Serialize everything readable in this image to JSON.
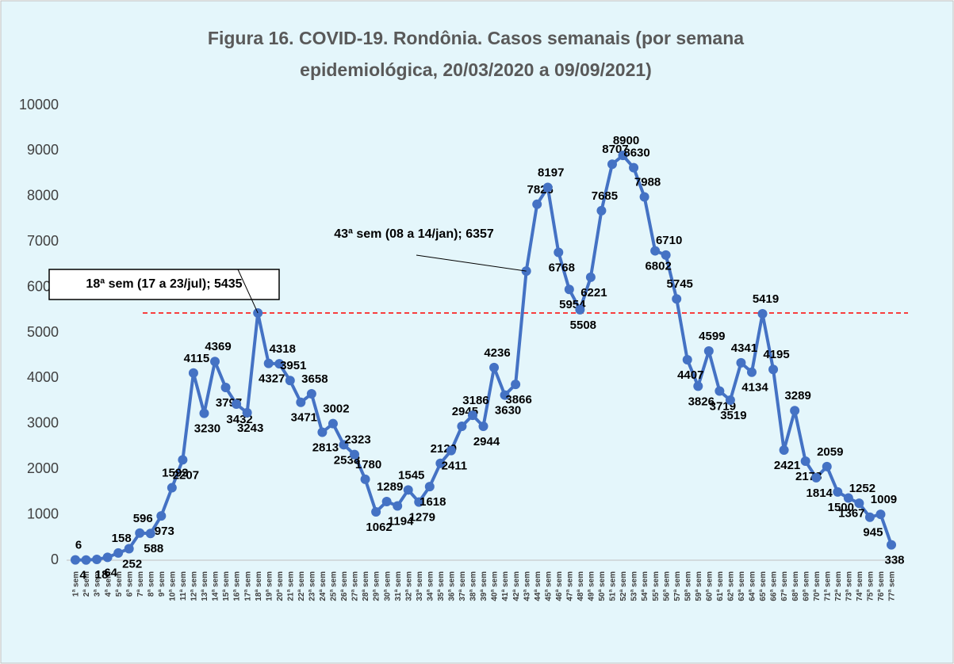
{
  "chart_data": {
    "type": "line",
    "title": [
      "Figura 16. COVID-19. Rondônia. Casos semanais (por semana",
      "epidemiológica, 20/03/2020 a 09/09/2021)"
    ],
    "categories": [
      "1ª sem",
      "2ª sem",
      "3ª sem",
      "4ª sem",
      "5ª sem",
      "6ª sem",
      "7ª sem",
      "8ª sem",
      "9ª sem",
      "10ª sem",
      "11ª sem",
      "12ª sem",
      "13ª sem",
      "14ª sem",
      "15ª sem",
      "16ª sem",
      "17ª sem",
      "18ª sem",
      "19ª sem",
      "20ª sem",
      "21ª sem",
      "22ª sem",
      "23ª sem",
      "24ª sem",
      "25ª sem",
      "26ª sem",
      "27ª sem",
      "28ª sem",
      "29ª sem",
      "30ª sem",
      "31ª sem",
      "32ª sem",
      "33ª sem",
      "34ª sem",
      "35ª sem",
      "36ª sem",
      "37ª sem",
      "38ª sem",
      "39ª sem",
      "40ª sem",
      "41ª sem",
      "42ª sem",
      "43ª sem",
      "44ª sem",
      "45ª sem",
      "46ª sem",
      "47ª sem",
      "48ª sem",
      "49ª sem",
      "50ª sem",
      "51ª sem",
      "52ª sem",
      "53ª sem",
      "54ª sem",
      "55ª sem",
      "56ª sem",
      "57ª sem",
      "58ª sem",
      "59ª sem",
      "60ª sem",
      "61ª sem",
      "62ª sem",
      "63ª sem",
      "64ª sem",
      "65ª sem",
      "66ª sem",
      "67ª sem",
      "68ª sem",
      "69ª sem",
      "70ª sem",
      "71ª sem",
      "72ª sem",
      "73ª sem",
      "74ª sem",
      "75ª sem",
      "76ª sem",
      "77ª sem"
    ],
    "values": [
      6,
      4,
      18,
      64,
      158,
      252,
      596,
      588,
      973,
      1593,
      2207,
      4115,
      3230,
      4369,
      3797,
      3432,
      3243,
      5435,
      4327,
      4318,
      3951,
      3471,
      3658,
      2813,
      3002,
      2538,
      2323,
      1780,
      1062,
      1289,
      1194,
      1545,
      1279,
      1618,
      2129,
      2411,
      2945,
      3186,
      2944,
      4236,
      3630,
      3866,
      6357,
      7826,
      8197,
      6768,
      5954,
      5508,
      6221,
      7685,
      8707,
      8900,
      8630,
      7988,
      6802,
      6710,
      5745,
      4407,
      3826,
      4599,
      3719,
      3519,
      4341,
      4134,
      5419,
      4195,
      2421,
      3289,
      2178,
      1814,
      2059,
      1500,
      1367,
      1252,
      945,
      1009,
      338
    ],
    "color": "#4472c4",
    "ylim": [
      0,
      10000
    ],
    "yticks": [
      0,
      1000,
      2000,
      3000,
      4000,
      5000,
      6000,
      7000,
      8000,
      9000,
      10000
    ],
    "reference_line": 5435,
    "reference_color": "#ff0000",
    "annotations": [
      "18ª sem (17 a 23/jul); 5435",
      "43ª sem (08 a 14/jan); 6357"
    ]
  }
}
